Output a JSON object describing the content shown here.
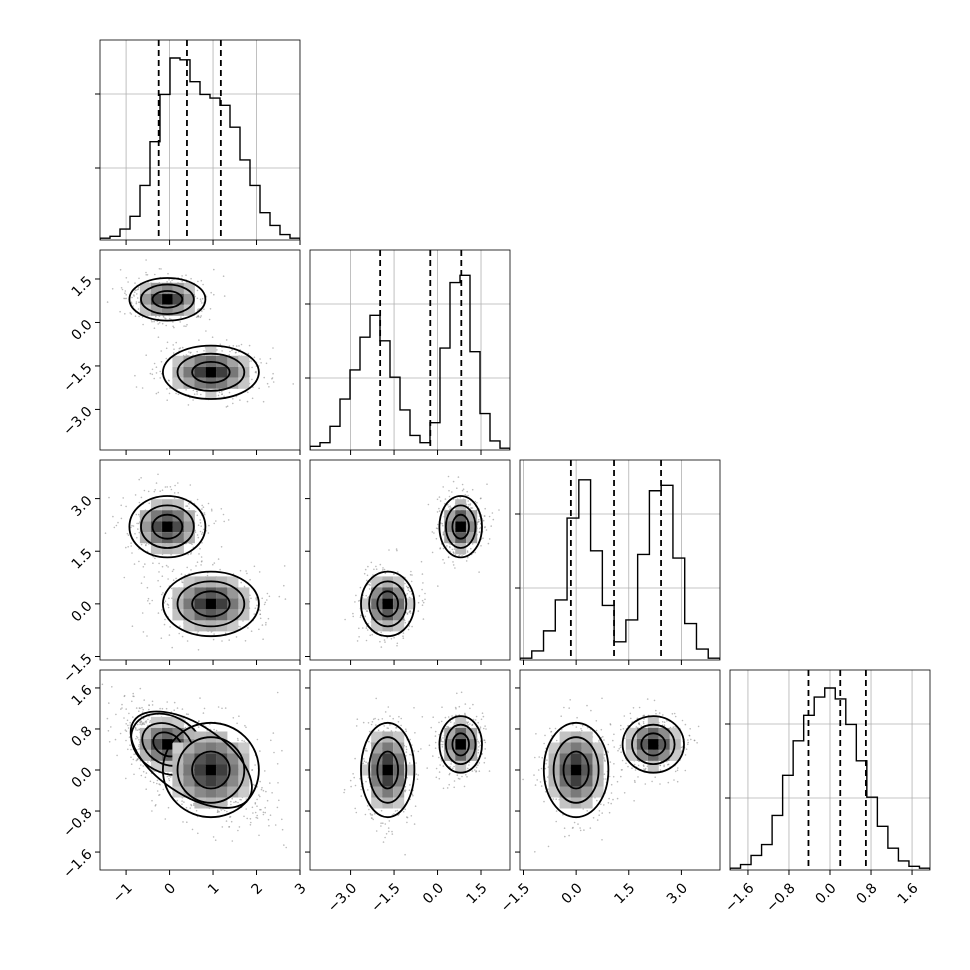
{
  "chart_data": {
    "type": "corner",
    "dimensions": 4,
    "grid": true,
    "quantile_lines": "dashed",
    "colors": {
      "frame": "#000000",
      "grid": "#b0b0b0",
      "histogram": "#000000",
      "density": "#000000"
    },
    "ranges": [
      [
        -1.6,
        3.0
      ],
      [
        -4.4,
        2.5
      ],
      [
        -1.6,
        4.1
      ],
      [
        -1.95,
        1.95
      ]
    ],
    "ticks": [
      {
        "values": [
          -1,
          0,
          1,
          2,
          3
        ],
        "labels": [
          "−1",
          "0",
          "1",
          "2",
          "3"
        ]
      },
      {
        "values": [
          -3.0,
          -1.5,
          0.0,
          1.5
        ],
        "labels": [
          "−3.0",
          "−1.5",
          "0.0",
          "1.5"
        ]
      },
      {
        "values": [
          -1.5,
          0.0,
          1.5,
          3.0
        ],
        "labels": [
          "−1.5",
          "0.0",
          "1.5",
          "3.0"
        ]
      },
      {
        "values": [
          -1.6,
          -0.8,
          0.0,
          0.8,
          1.6
        ],
        "labels": [
          "−1.6",
          "−0.8",
          "0.0",
          "0.8",
          "1.6"
        ]
      }
    ],
    "quantiles": [
      [
        -0.25,
        0.4,
        1.18
      ],
      [
        -1.98,
        -0.25,
        0.82
      ],
      [
        -0.15,
        1.08,
        2.42
      ],
      [
        -0.42,
        0.2,
        0.7
      ]
    ],
    "histograms": [
      {
        "dim": 0,
        "counts": [
          0.01,
          0.02,
          0.06,
          0.13,
          0.3,
          0.54,
          0.8,
          1.0,
          0.99,
          0.87,
          0.8,
          0.78,
          0.74,
          0.62,
          0.44,
          0.3,
          0.15,
          0.08,
          0.03,
          0.01
        ]
      },
      {
        "dim": 1,
        "counts": [
          0.02,
          0.04,
          0.13,
          0.28,
          0.44,
          0.62,
          0.74,
          0.6,
          0.4,
          0.22,
          0.08,
          0.04,
          0.15,
          0.56,
          0.92,
          0.96,
          0.54,
          0.2,
          0.05,
          0.01
        ]
      },
      {
        "dim": 2,
        "counts": [
          0.01,
          0.05,
          0.16,
          0.33,
          0.78,
          0.99,
          0.6,
          0.3,
          0.1,
          0.22,
          0.58,
          0.93,
          0.96,
          0.56,
          0.2,
          0.06,
          0.01
        ]
      },
      {
        "dim": 3,
        "counts": [
          0.01,
          0.03,
          0.08,
          0.14,
          0.3,
          0.52,
          0.71,
          0.85,
          0.95,
          1.0,
          0.94,
          0.8,
          0.6,
          0.4,
          0.24,
          0.12,
          0.05,
          0.02,
          0.01
        ]
      }
    ],
    "clusters": [
      {
        "name": "",
        "weight": 0.5,
        "mean": [
          -0.05,
          0.8,
          2.2,
          0.5
        ],
        "sd": [
          0.38,
          0.32,
          0.38,
          0.24
        ]
      },
      {
        "name": "",
        "weight": 0.5,
        "mean": [
          0.95,
          -1.72,
          0.0,
          0.0
        ],
        "sd": [
          0.48,
          0.4,
          0.4,
          0.4
        ]
      }
    ],
    "tail": {
      "x_dim": 0,
      "y_dim": 3,
      "x_center": 0.5,
      "y_center": 0.2,
      "spread_x": 0.55,
      "spread_y": 0.45,
      "slope": -0.7
    }
  }
}
